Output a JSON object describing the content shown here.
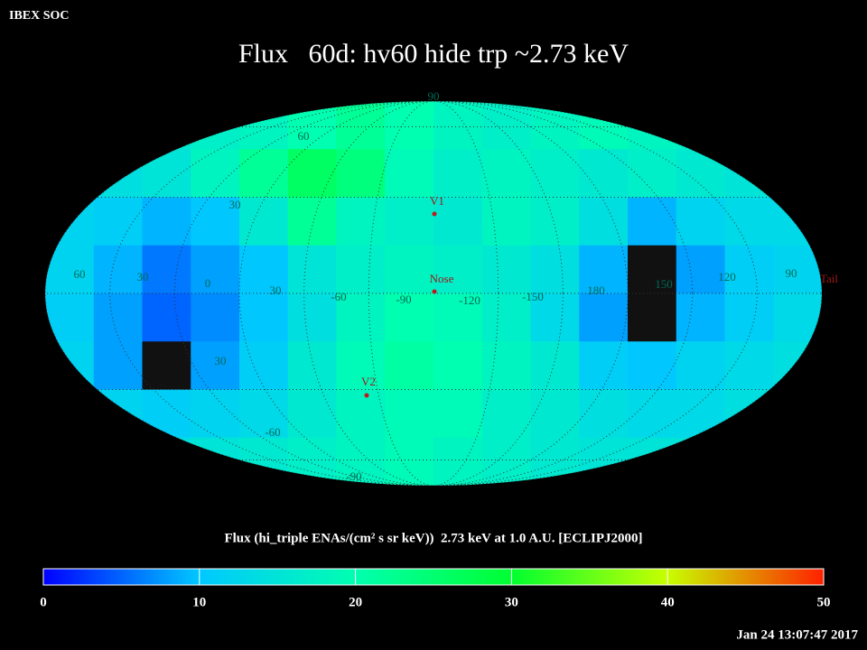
{
  "header": {
    "org": "IBEX SOC",
    "title": "Flux   60d: hv60 hide trp ~2.73 keV",
    "timestamp": "Jan 24 13:07:47 2017"
  },
  "map": {
    "grid_labels": [
      "90",
      "60",
      "30",
      "30",
      "-60",
      "-90",
      "60",
      "30",
      "0",
      "30",
      "-60",
      "-90",
      "-120",
      "-150",
      "180",
      "150",
      "120",
      "90"
    ],
    "markers": [
      "V1",
      "Nose",
      "V2",
      "Tail"
    ],
    "no_data_color": "#111111",
    "cells": [
      [
        15,
        15,
        16,
        17,
        18,
        20,
        22,
        20,
        18,
        17,
        18,
        19,
        18,
        17,
        16,
        15
      ],
      [
        14,
        14,
        15,
        18,
        22,
        26,
        24,
        19,
        17,
        18,
        17,
        16,
        17,
        16,
        15,
        14
      ],
      [
        12,
        11,
        9,
        10,
        16,
        22,
        18,
        17,
        16,
        18,
        17,
        14,
        9,
        12,
        13,
        13
      ],
      [
        12,
        9,
        6,
        8,
        10,
        15,
        17,
        18,
        17,
        16,
        14,
        9,
        null,
        8,
        11,
        12
      ],
      [
        11,
        8,
        5,
        7,
        10,
        14,
        18,
        20,
        19,
        17,
        13,
        8,
        null,
        9,
        11,
        13
      ],
      [
        12,
        8,
        null,
        8,
        11,
        16,
        19,
        21,
        20,
        18,
        16,
        11,
        10,
        12,
        13,
        14
      ],
      [
        13,
        12,
        11,
        12,
        13,
        16,
        18,
        19,
        19,
        17,
        16,
        14,
        13,
        13,
        14,
        14
      ],
      [
        15,
        14,
        14,
        15,
        16,
        17,
        18,
        19,
        18,
        17,
        16,
        15,
        15,
        15,
        15,
        15
      ]
    ]
  },
  "colorbar": {
    "label": "Flux (hi_triple ENAs/(cm² s sr keV))  2.73 keV at 1.0 A.U. [ECLIPJ2000]",
    "lim": [
      0,
      50
    ],
    "ticks": [
      0,
      10,
      20,
      30,
      40,
      50
    ],
    "colormap": [
      "#0000ff",
      "#00c8ff",
      "#00ffb0",
      "#00ff30",
      "#c8ff00",
      "#ff2000"
    ]
  }
}
